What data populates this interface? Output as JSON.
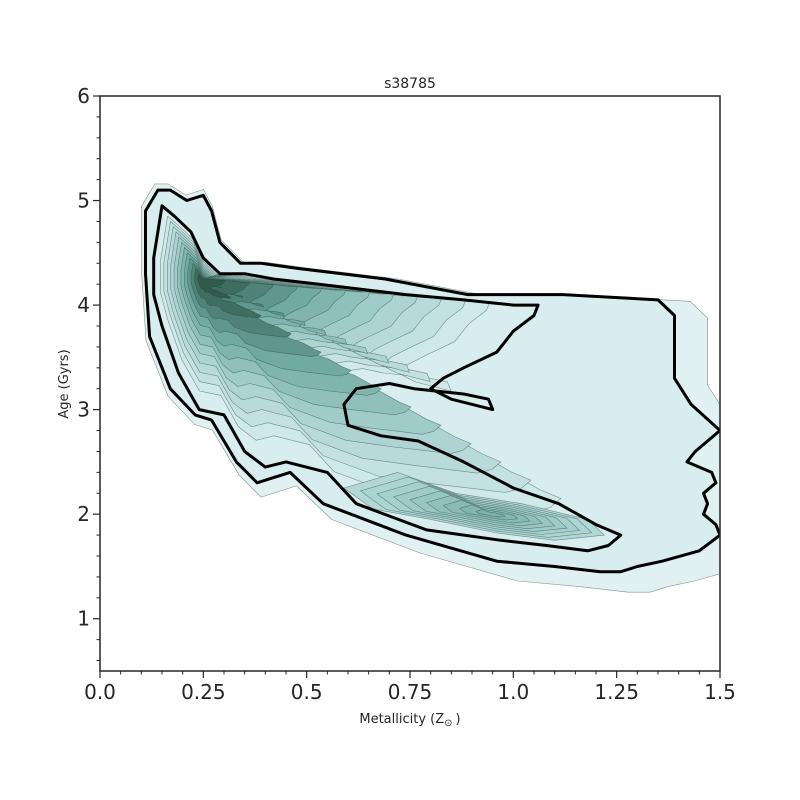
{
  "chart_data": {
    "type": "contour",
    "title": "s38785",
    "xlabel": "Metallicity (Z",
    "xlabel_symbol": "⊙",
    "xlabel_close": ")",
    "ylabel": "Age (Gyrs)",
    "xlim": [
      0.0,
      1.5
    ],
    "ylim": [
      0.5,
      6.0
    ],
    "x_ticks": [
      0.0,
      0.25,
      0.5,
      0.75,
      1.0,
      1.25,
      1.5
    ],
    "x_tick_labels": [
      "0.0",
      "0.25",
      "0.5",
      "0.75",
      "1.0",
      "1.25",
      "1.5"
    ],
    "y_ticks": [
      1,
      2,
      3,
      4,
      5,
      6
    ],
    "y_tick_labels": [
      "1",
      "2",
      "3",
      "4",
      "5",
      "6"
    ],
    "grid": false,
    "colormap": [
      "#f4fafa",
      "#d4ebeb",
      "#a9d2d0",
      "#6ea89e",
      "#2f5a4c"
    ],
    "density_peaks": [
      {
        "x": 0.245,
        "y": 4.25,
        "weight": 1.0
      },
      {
        "x": 0.95,
        "y": 2.0,
        "weight": 0.55
      }
    ],
    "outer_contour": [
      [
        0.11,
        4.9
      ],
      [
        0.14,
        5.1
      ],
      [
        0.17,
        5.1
      ],
      [
        0.21,
        5.0
      ],
      [
        0.25,
        5.05
      ],
      [
        0.27,
        4.9
      ],
      [
        0.29,
        4.6
      ],
      [
        0.34,
        4.4
      ],
      [
        0.39,
        4.4
      ],
      [
        0.48,
        4.35
      ],
      [
        0.69,
        4.25
      ],
      [
        0.89,
        4.1
      ],
      [
        1.12,
        4.1
      ],
      [
        1.35,
        4.05
      ],
      [
        1.39,
        3.9
      ],
      [
        1.39,
        3.3
      ],
      [
        1.43,
        3.05
      ],
      [
        1.5,
        2.8
      ],
      [
        1.44,
        2.6
      ],
      [
        1.42,
        2.5
      ],
      [
        1.48,
        2.4
      ],
      [
        1.49,
        2.3
      ],
      [
        1.46,
        2.2
      ],
      [
        1.47,
        2.1
      ],
      [
        1.46,
        2.0
      ],
      [
        1.49,
        1.9
      ],
      [
        1.5,
        1.8
      ],
      [
        1.45,
        1.65
      ],
      [
        1.36,
        1.55
      ],
      [
        1.3,
        1.5
      ],
      [
        1.26,
        1.45
      ],
      [
        1.21,
        1.45
      ],
      [
        1.1,
        1.5
      ],
      [
        0.96,
        1.55
      ],
      [
        0.74,
        1.8
      ],
      [
        0.54,
        2.1
      ],
      [
        0.46,
        2.4
      ],
      [
        0.42,
        2.35
      ],
      [
        0.38,
        2.3
      ],
      [
        0.33,
        2.5
      ],
      [
        0.3,
        2.7
      ],
      [
        0.27,
        2.9
      ],
      [
        0.23,
        2.95
      ],
      [
        0.17,
        3.2
      ],
      [
        0.14,
        3.5
      ],
      [
        0.12,
        3.7
      ],
      [
        0.11,
        4.3
      ]
    ],
    "inner_contour": [
      [
        0.13,
        4.45
      ],
      [
        0.15,
        4.95
      ],
      [
        0.18,
        4.85
      ],
      [
        0.22,
        4.7
      ],
      [
        0.25,
        4.45
      ],
      [
        0.29,
        4.3
      ],
      [
        0.35,
        4.3
      ],
      [
        0.42,
        4.25
      ],
      [
        0.53,
        4.2
      ],
      [
        0.74,
        4.1
      ],
      [
        0.88,
        4.05
      ],
      [
        1.0,
        4.0
      ],
      [
        1.06,
        4.0
      ],
      [
        1.05,
        3.9
      ],
      [
        1.0,
        3.75
      ],
      [
        0.96,
        3.55
      ],
      [
        0.88,
        3.4
      ],
      [
        0.83,
        3.3
      ],
      [
        0.8,
        3.2
      ],
      [
        0.85,
        3.1
      ],
      [
        0.95,
        3.0
      ],
      [
        0.94,
        3.1
      ],
      [
        0.88,
        3.15
      ],
      [
        0.76,
        3.2
      ],
      [
        0.7,
        3.25
      ],
      [
        0.62,
        3.2
      ],
      [
        0.59,
        3.05
      ],
      [
        0.6,
        2.85
      ],
      [
        0.68,
        2.75
      ],
      [
        0.77,
        2.7
      ],
      [
        0.88,
        2.5
      ],
      [
        1.0,
        2.25
      ],
      [
        1.11,
        2.1
      ],
      [
        1.2,
        1.9
      ],
      [
        1.26,
        1.8
      ],
      [
        1.23,
        1.7
      ],
      [
        1.18,
        1.65
      ],
      [
        1.08,
        1.7
      ],
      [
        0.97,
        1.75
      ],
      [
        0.79,
        1.85
      ],
      [
        0.62,
        2.1
      ],
      [
        0.55,
        2.4
      ],
      [
        0.45,
        2.5
      ],
      [
        0.4,
        2.45
      ],
      [
        0.35,
        2.6
      ],
      [
        0.3,
        2.95
      ],
      [
        0.24,
        3.0
      ],
      [
        0.19,
        3.35
      ],
      [
        0.15,
        3.8
      ],
      [
        0.13,
        4.1
      ]
    ]
  }
}
